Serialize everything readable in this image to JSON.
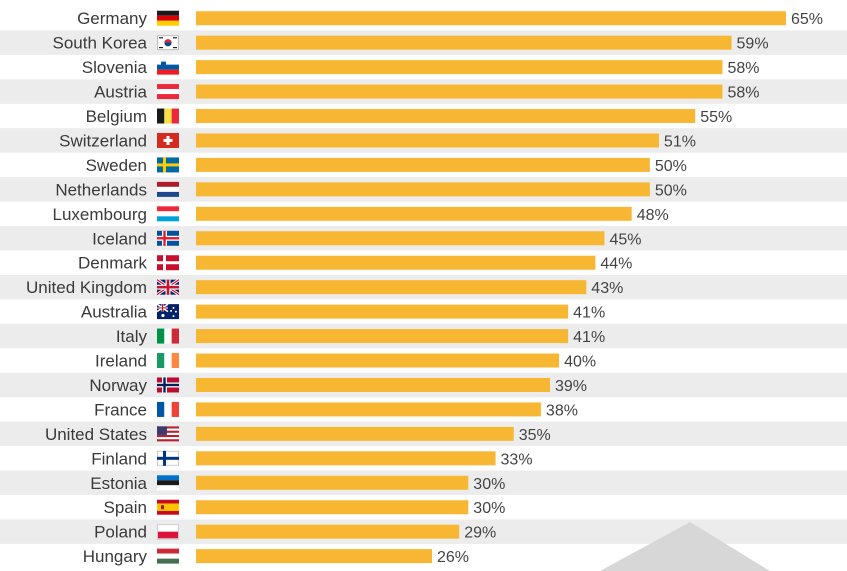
{
  "chart_data": {
    "type": "bar",
    "orientation": "horizontal",
    "title": "",
    "xlabel": "",
    "ylabel": "",
    "xlim": [
      0,
      65
    ],
    "grid": false,
    "value_suffix": "%",
    "categories": [
      "Germany",
      "South Korea",
      "Slovenia",
      "Austria",
      "Belgium",
      "Switzerland",
      "Sweden",
      "Netherlands",
      "Luxembourg",
      "Iceland",
      "Denmark",
      "United Kingdom",
      "Australia",
      "Italy",
      "Ireland",
      "Norway",
      "France",
      "United States",
      "Finland",
      "Estonia",
      "Spain",
      "Poland",
      "Hungary"
    ],
    "values": [
      65,
      59,
      58,
      58,
      55,
      51,
      50,
      50,
      48,
      45,
      44,
      43,
      41,
      41,
      40,
      39,
      38,
      35,
      33,
      30,
      30,
      29,
      26
    ],
    "value_labels": [
      "65%",
      "59%",
      "58%",
      "58%",
      "55%",
      "51%",
      "50%",
      "50%",
      "48%",
      "45%",
      "44%",
      "43%",
      "41%",
      "41%",
      "40%",
      "39%",
      "38%",
      "35%",
      "33%",
      "30%",
      "30%",
      "29%",
      "26%"
    ],
    "flag_icons": [
      "flag-germany-icon",
      "flag-south-korea-icon",
      "flag-slovenia-icon",
      "flag-austria-icon",
      "flag-belgium-icon",
      "flag-switzerland-icon",
      "flag-sweden-icon",
      "flag-netherlands-icon",
      "flag-luxembourg-icon",
      "flag-iceland-icon",
      "flag-denmark-icon",
      "flag-united-kingdom-icon",
      "flag-australia-icon",
      "flag-italy-icon",
      "flag-ireland-icon",
      "flag-norway-icon",
      "flag-france-icon",
      "flag-united-states-icon",
      "flag-finland-icon",
      "flag-estonia-icon",
      "flag-spain-icon",
      "flag-poland-icon",
      "flag-hungary-icon"
    ],
    "colors": {
      "bar": "#f7b733",
      "row_stripe": "#ececec",
      "background": "#ffffff"
    }
  }
}
